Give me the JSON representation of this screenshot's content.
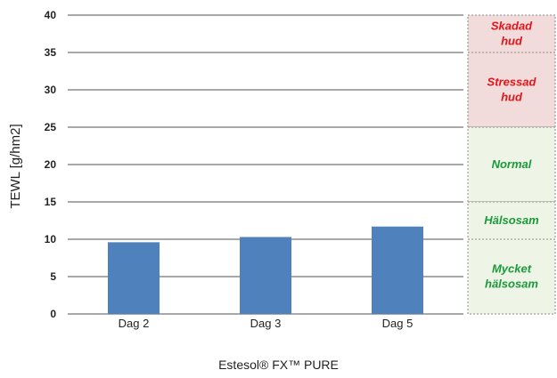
{
  "chart_data": {
    "type": "bar",
    "categories": [
      "Dag 2",
      "Dag 3",
      "Dag 5"
    ],
    "values": [
      9.6,
      10.3,
      11.7
    ],
    "ylabel": "TEWL [g/hm2]",
    "xlabel": "Estesol® FX™ PURE",
    "ylim": [
      0,
      40
    ],
    "yticks": [
      0,
      5,
      10,
      15,
      20,
      25,
      30,
      35,
      40
    ],
    "grid": true,
    "bar_color": "#4f81bd",
    "zones": [
      {
        "label": "Skadad hud",
        "from": 35,
        "to": 40,
        "fill": "#f2dcdb",
        "text_color": "#e3151a"
      },
      {
        "label": "Stressad hud",
        "from": 25,
        "to": 35,
        "fill": "#f2dcdb",
        "text_color": "#e3151a"
      },
      {
        "label": "Normal",
        "from": 15,
        "to": 25,
        "fill": "#eef4e6",
        "text_color": "#1a9a3a"
      },
      {
        "label": "Hälsosam",
        "from": 10,
        "to": 15,
        "fill": "#eef4e6",
        "text_color": "#1a9a3a"
      },
      {
        "label": "Mycket hälsosam",
        "from": 0,
        "to": 10,
        "fill": "#eef4e6",
        "text_color": "#1a9a3a"
      }
    ]
  }
}
